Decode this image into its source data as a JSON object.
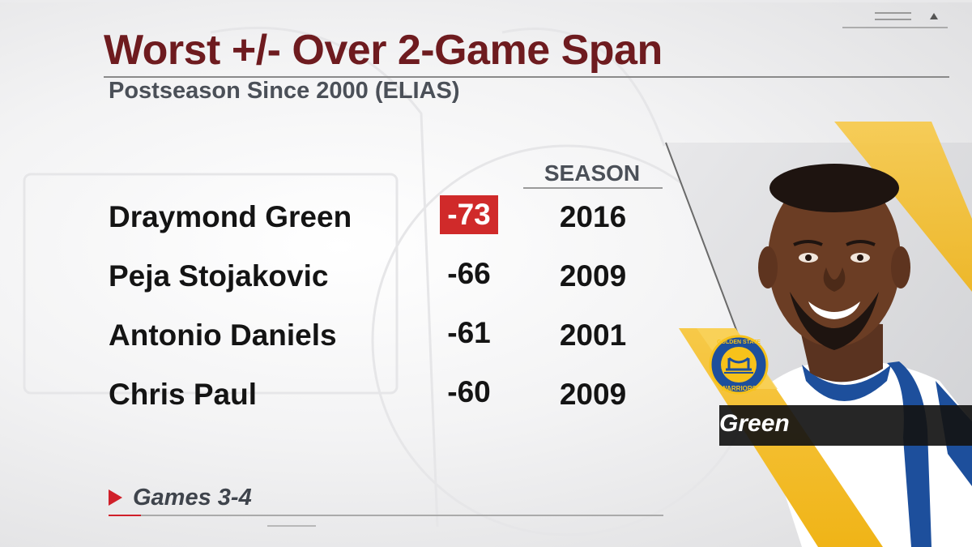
{
  "header": {
    "title": "Worst +/- Over 2-Game Span",
    "subtitle": "Postseason Since 2000 (ELIAS)"
  },
  "table": {
    "column_header": "SEASON",
    "rows": [
      {
        "name": "Draymond Green",
        "value": "-73",
        "season": "2016",
        "highlighted": true
      },
      {
        "name": "Peja Stojakovic",
        "value": "-66",
        "season": "2009",
        "highlighted": false
      },
      {
        "name": "Antonio Daniels",
        "value": "-61",
        "season": "2001",
        "highlighted": false
      },
      {
        "name": "Chris Paul",
        "value": "-60",
        "season": "2009",
        "highlighted": false
      }
    ]
  },
  "footnote": {
    "text": "Games 3-4"
  },
  "player": {
    "name_label": "Green",
    "team_logo_text_top": "GOLDEN STATE",
    "team_logo_text_bottom": "WARRIORS"
  },
  "colors": {
    "title": "#6e1b1f",
    "highlight": "#d02a2a",
    "accent_yellow": "#f3bd1c",
    "team_blue": "#1d4f9c",
    "team_gold": "#f7c21a"
  },
  "icons": {
    "footnote_marker": "play-triangle-icon",
    "team_logo": "warriors-logo",
    "player_photo": "player-headshot"
  }
}
